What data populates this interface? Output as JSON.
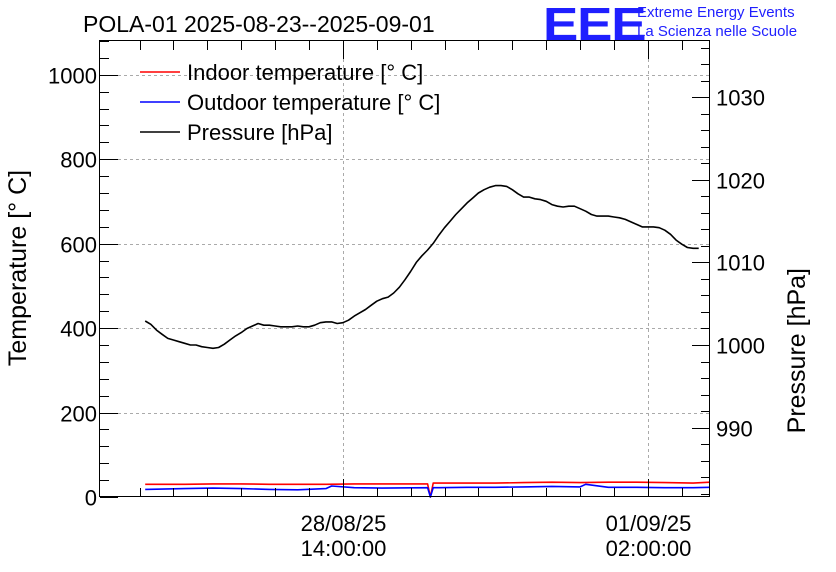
{
  "logo": {
    "mark": "EEE",
    "line1": "Extreme Energy Events",
    "line2": "La Scienza nelle Scuole"
  },
  "chart_data": {
    "type": "line",
    "title": "POLA-01 2025-08-23--2025-09-01",
    "xlabel": "",
    "ylabel": "Temperature [° C]",
    "y2label": "Pressure [hPa]",
    "ylim": [
      0,
      1080
    ],
    "y2lim": [
      981.6,
      1036.8
    ],
    "yticks": [
      0,
      200,
      400,
      600,
      800,
      1000
    ],
    "y2ticks": [
      990,
      1000,
      1010,
      1020,
      1030
    ],
    "xlim_hours": [
      0,
      216
    ],
    "xticks": [
      {
        "hours": 86,
        "line1": "28/08/25",
        "line2": "14:00:00"
      },
      {
        "hours": 194,
        "line1": "01/09/25",
        "line2": "02:00:00"
      }
    ],
    "grid": true,
    "legend_position": "top-left",
    "series": [
      {
        "name": "Indoor temperature [° C]",
        "color": "#ff0000",
        "axis": "left",
        "x": [
          16,
          30,
          40,
          50,
          60,
          70,
          80,
          90,
          100,
          116,
          117,
          118,
          120,
          130,
          140,
          150,
          160,
          170,
          180,
          190,
          200,
          210,
          216
        ],
        "values": [
          30,
          30,
          31,
          31,
          30,
          30,
          30,
          31,
          31,
          31,
          0,
          33,
          33,
          33,
          33,
          34,
          35,
          34,
          35,
          35,
          34,
          33,
          35
        ]
      },
      {
        "name": "Outdoor temperature [° C]",
        "color": "#0000ff",
        "axis": "left",
        "x": [
          16,
          30,
          40,
          50,
          60,
          70,
          80,
          82,
          90,
          100,
          116,
          117,
          118,
          120,
          130,
          140,
          150,
          160,
          170,
          172,
          180,
          190,
          200,
          210,
          216
        ],
        "values": [
          18,
          20,
          21,
          20,
          18,
          17,
          20,
          26,
          22,
          21,
          22,
          0,
          22,
          22,
          23,
          23,
          24,
          25,
          24,
          30,
          23,
          23,
          22,
          22,
          23
        ]
      },
      {
        "name": "Pressure [hPa]",
        "color": "#000000",
        "axis": "right",
        "x": [
          16,
          18,
          20,
          22,
          24,
          26,
          28,
          30,
          32,
          34,
          36,
          38,
          40,
          42,
          44,
          46,
          48,
          50,
          52,
          54,
          56,
          58,
          60,
          62,
          64,
          66,
          68,
          70,
          72,
          74,
          76,
          78,
          80,
          82,
          84,
          86,
          88,
          90,
          92,
          94,
          96,
          98,
          100,
          102,
          104,
          106,
          108,
          110,
          112,
          114,
          116,
          118,
          120,
          122,
          124,
          126,
          128,
          130,
          132,
          134,
          136,
          138,
          140,
          142,
          144,
          146,
          148,
          150,
          152,
          154,
          156,
          158,
          160,
          162,
          164,
          166,
          168,
          170,
          172,
          174,
          176,
          178,
          180,
          182,
          184,
          186,
          188,
          190,
          192,
          194,
          196,
          198,
          200,
          202,
          204,
          206,
          208,
          210,
          212
        ],
        "values": [
          1002.9,
          1002.5,
          1001.8,
          1001.3,
          1000.8,
          1000.6,
          1000.4,
          1000.2,
          1000.0,
          1000.0,
          999.8,
          999.7,
          999.6,
          999.7,
          1000.1,
          1000.6,
          1001.1,
          1001.5,
          1002.0,
          1002.3,
          1002.6,
          1002.4,
          1002.4,
          1002.3,
          1002.2,
          1002.2,
          1002.2,
          1002.3,
          1002.2,
          1002.2,
          1002.4,
          1002.7,
          1002.8,
          1002.8,
          1002.6,
          1002.7,
          1003.0,
          1003.5,
          1003.9,
          1004.3,
          1004.8,
          1005.3,
          1005.6,
          1005.8,
          1006.3,
          1007.0,
          1007.9,
          1008.9,
          1010.0,
          1010.8,
          1011.5,
          1012.3,
          1013.3,
          1014.2,
          1015.0,
          1015.8,
          1016.5,
          1017.2,
          1017.8,
          1018.4,
          1018.8,
          1019.1,
          1019.3,
          1019.3,
          1019.2,
          1018.8,
          1018.3,
          1017.9,
          1017.9,
          1017.7,
          1017.6,
          1017.4,
          1017.0,
          1016.8,
          1016.7,
          1016.8,
          1016.8,
          1016.5,
          1016.2,
          1015.8,
          1015.6,
          1015.6,
          1015.6,
          1015.5,
          1015.4,
          1015.2,
          1014.9,
          1014.6,
          1014.3,
          1014.3,
          1014.3,
          1014.2,
          1013.9,
          1013.4,
          1012.7,
          1012.2,
          1011.8,
          1011.7,
          1011.7
        ]
      }
    ]
  }
}
